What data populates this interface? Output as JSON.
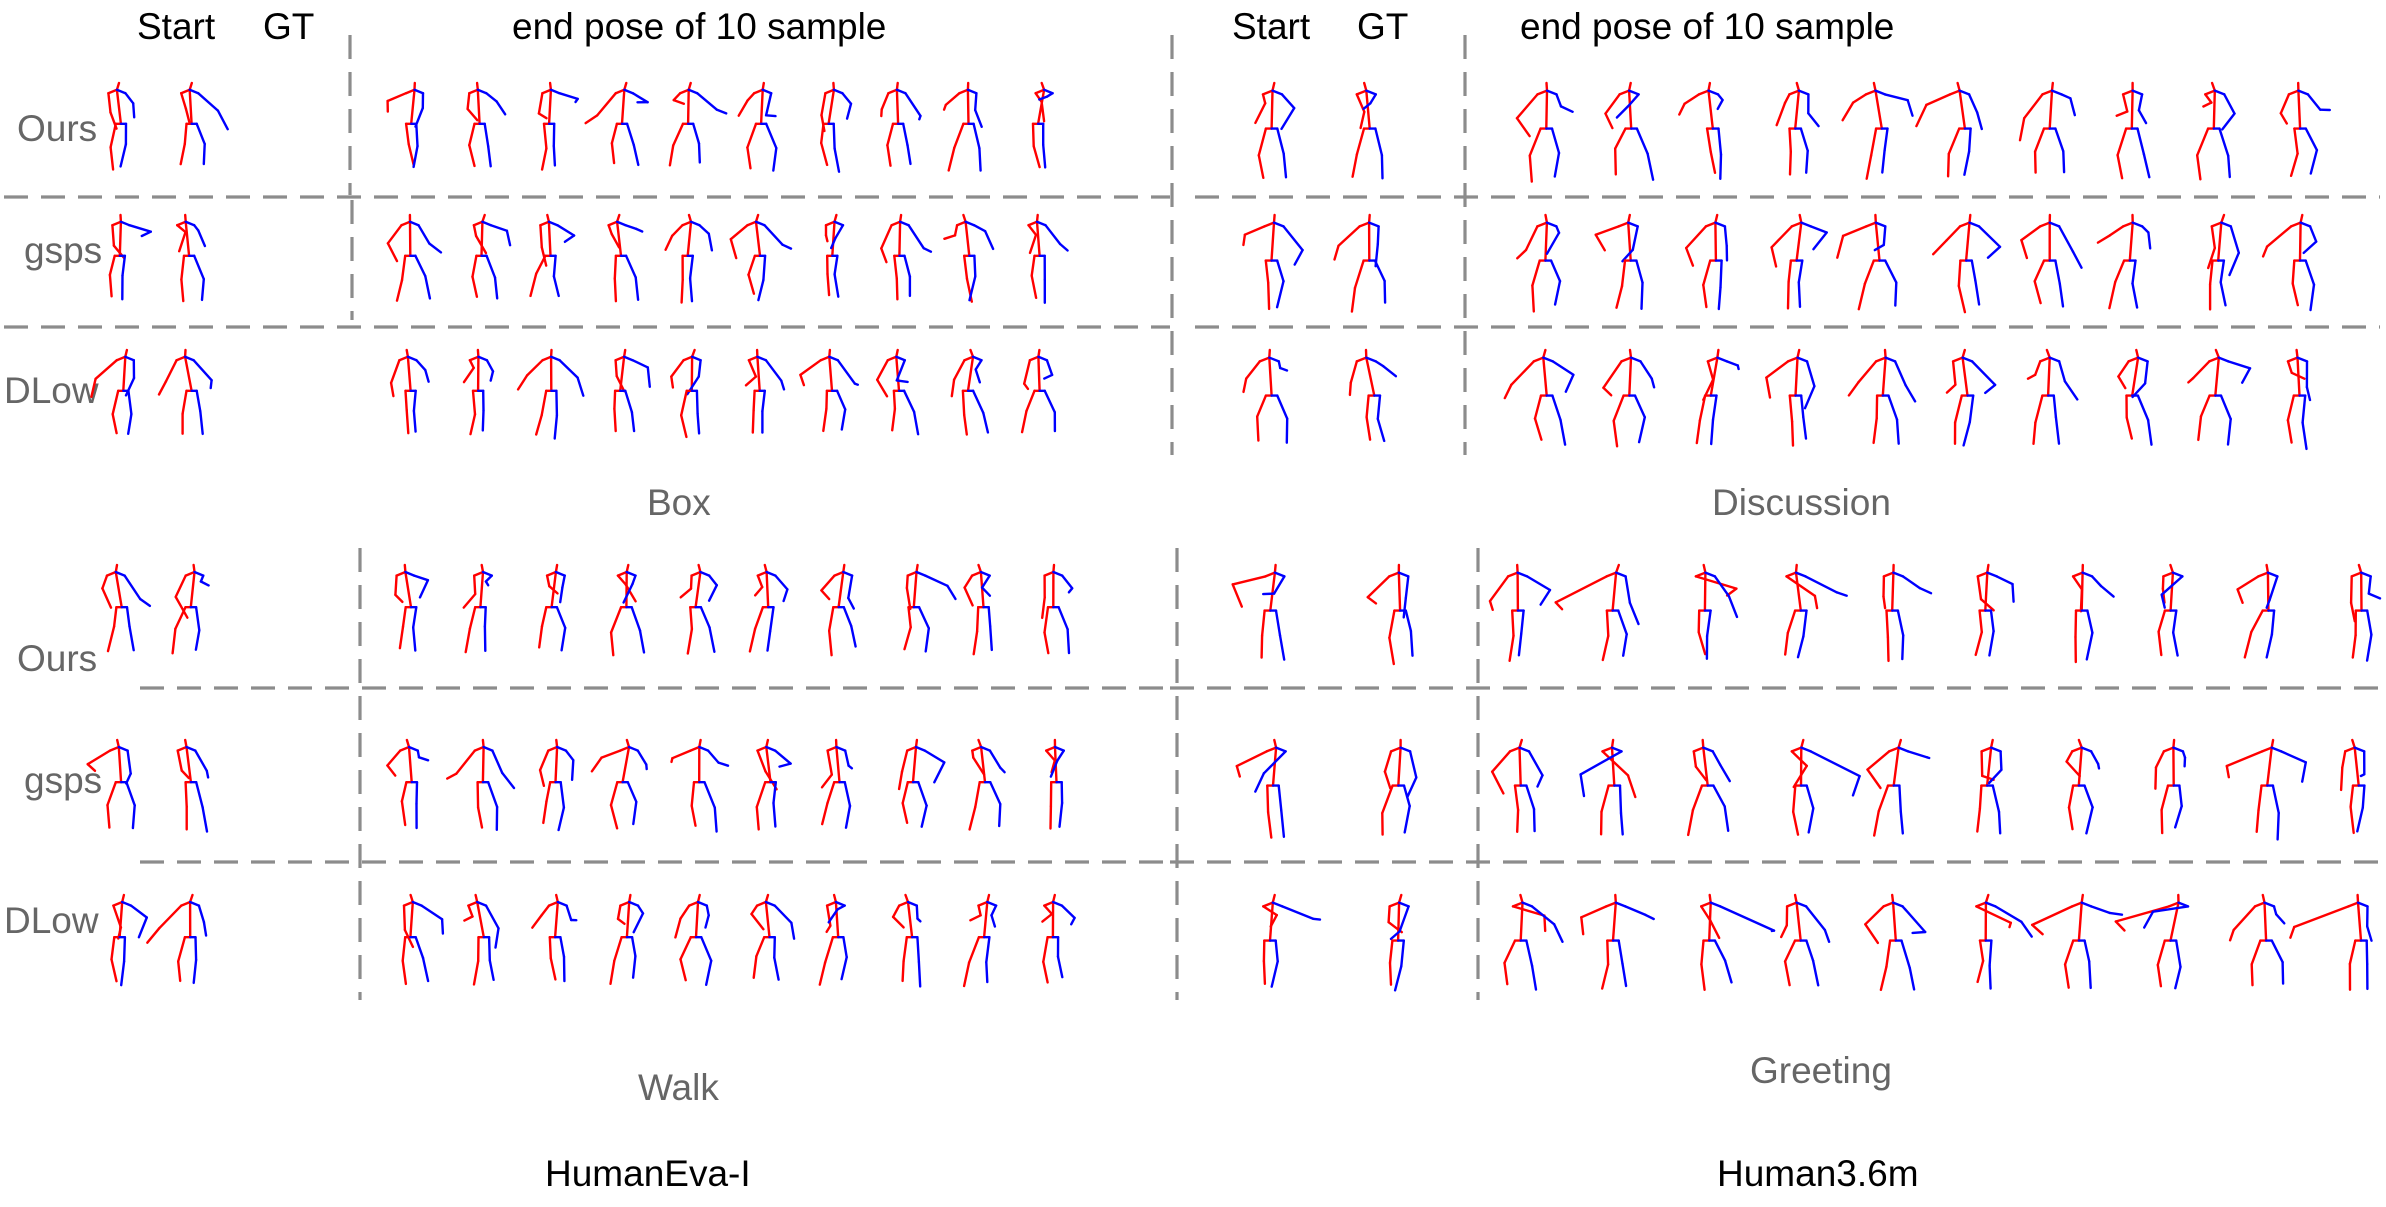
{
  "headers": {
    "start": "Start",
    "gt": "GT",
    "samples": "end pose of 10 sample"
  },
  "rows": [
    "Ours",
    "gsps",
    "DLow"
  ],
  "panels": [
    {
      "dataset": "HumanEva-I",
      "action": "Box"
    },
    {
      "dataset": "Human3.6m",
      "action": "Discussion"
    },
    {
      "dataset": "HumanEva-I",
      "action": "Walk"
    },
    {
      "dataset": "Human3.6m",
      "action": "Greeting"
    }
  ],
  "datasets": [
    "HumanEva-I",
    "Human3.6m"
  ],
  "colors": {
    "left_limbs": "#ff0000",
    "right_limbs": "#0000ff",
    "separator": "#8c8c8c",
    "row_label": "#666666"
  },
  "samples_per_row": 10
}
